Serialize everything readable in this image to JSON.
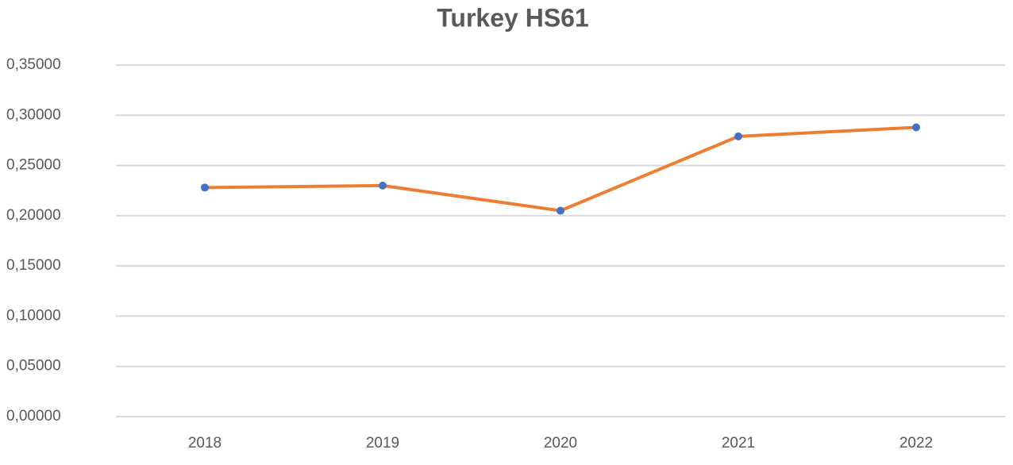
{
  "chart_data": {
    "type": "line",
    "title": "Turkey HS61",
    "categories": [
      "2018",
      "2019",
      "2020",
      "2021",
      "2022"
    ],
    "series": [
      {
        "name": "Turkey HS61",
        "color": "#ed7d31",
        "marker_color": "#4472c4",
        "values": [
          0.228,
          0.23,
          0.205,
          0.279,
          0.288
        ]
      }
    ],
    "ylim": [
      0,
      0.35
    ],
    "yticks": [
      {
        "value": 0,
        "label": "0,00000"
      },
      {
        "value": 0.05,
        "label": "0,05000"
      },
      {
        "value": 0.1,
        "label": "0,10000"
      },
      {
        "value": 0.15,
        "label": "0,15000"
      },
      {
        "value": 0.2,
        "label": "0,20000"
      },
      {
        "value": 0.25,
        "label": "0,25000"
      },
      {
        "value": 0.3,
        "label": "0,30000"
      },
      {
        "value": 0.35,
        "label": "0,35000"
      }
    ],
    "grid": true
  }
}
